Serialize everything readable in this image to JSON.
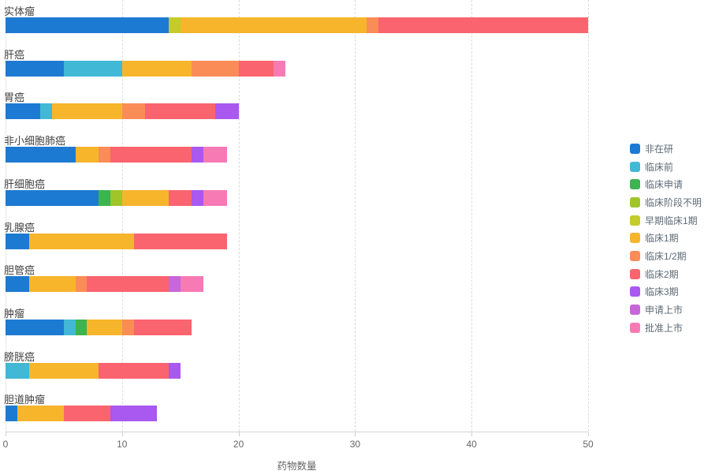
{
  "chart_data": {
    "type": "bar",
    "orientation": "horizontal",
    "stacked": true,
    "title": "",
    "xlabel": "药物数量",
    "ylabel": "",
    "xlim": [
      0,
      50
    ],
    "xticks": [
      0,
      10,
      20,
      30,
      40,
      50
    ],
    "grid": "vertical-dashed",
    "legend_position": "right",
    "series": [
      {
        "name": "非在研",
        "color": "#1d7ad3"
      },
      {
        "name": "临床前",
        "color": "#41b8d5"
      },
      {
        "name": "临床申请",
        "color": "#3cb44f"
      },
      {
        "name": "临床阶段不明",
        "color": "#a0c529"
      },
      {
        "name": "早期临床1期",
        "color": "#c3cc28"
      },
      {
        "name": "临床1期",
        "color": "#f7b52c"
      },
      {
        "name": "临床1/2期",
        "color": "#fa8c57"
      },
      {
        "name": "临床2期",
        "color": "#f9646f"
      },
      {
        "name": "临床3期",
        "color": "#a958f0"
      },
      {
        "name": "申请上市",
        "color": "#c667da"
      },
      {
        "name": "批准上市",
        "color": "#f77ab5"
      }
    ],
    "categories": [
      "实体瘤",
      "肝癌",
      "胃癌",
      "非小细胞肺癌",
      "肝细胞癌",
      "乳腺癌",
      "胆管癌",
      "肿瘤",
      "膀胱癌",
      "胆道肿瘤"
    ],
    "rows": [
      {
        "category": "实体瘤",
        "total": 50,
        "segments": [
          {
            "series": "非在研",
            "value": 14
          },
          {
            "series": "早期临床1期",
            "value": 1
          },
          {
            "series": "临床1期",
            "value": 16
          },
          {
            "series": "临床1/2期",
            "value": 1
          },
          {
            "series": "临床2期",
            "value": 18
          }
        ]
      },
      {
        "category": "肝癌",
        "total": 24,
        "segments": [
          {
            "series": "非在研",
            "value": 5
          },
          {
            "series": "临床前",
            "value": 5
          },
          {
            "series": "临床1期",
            "value": 6
          },
          {
            "series": "临床1/2期",
            "value": 4
          },
          {
            "series": "临床2期",
            "value": 3
          },
          {
            "series": "批准上市",
            "value": 1
          }
        ]
      },
      {
        "category": "胃癌",
        "total": 20,
        "segments": [
          {
            "series": "非在研",
            "value": 3
          },
          {
            "series": "临床前",
            "value": 1
          },
          {
            "series": "临床1期",
            "value": 6
          },
          {
            "series": "临床1/2期",
            "value": 2
          },
          {
            "series": "临床2期",
            "value": 6
          },
          {
            "series": "临床3期",
            "value": 2
          }
        ]
      },
      {
        "category": "非小细胞肺癌",
        "total": 19,
        "segments": [
          {
            "series": "非在研",
            "value": 6
          },
          {
            "series": "临床1期",
            "value": 2
          },
          {
            "series": "临床1/2期",
            "value": 1
          },
          {
            "series": "临床2期",
            "value": 7
          },
          {
            "series": "临床3期",
            "value": 1
          },
          {
            "series": "批准上市",
            "value": 2
          }
        ]
      },
      {
        "category": "肝细胞癌",
        "total": 19,
        "segments": [
          {
            "series": "非在研",
            "value": 8
          },
          {
            "series": "临床申请",
            "value": 1
          },
          {
            "series": "临床阶段不明",
            "value": 1
          },
          {
            "series": "临床1期",
            "value": 4
          },
          {
            "series": "临床2期",
            "value": 2
          },
          {
            "series": "临床3期",
            "value": 1
          },
          {
            "series": "批准上市",
            "value": 2
          }
        ]
      },
      {
        "category": "乳腺癌",
        "total": 19,
        "segments": [
          {
            "series": "非在研",
            "value": 2
          },
          {
            "series": "临床1期",
            "value": 9
          },
          {
            "series": "临床2期",
            "value": 8
          }
        ]
      },
      {
        "category": "胆管癌",
        "total": 17,
        "segments": [
          {
            "series": "非在研",
            "value": 2
          },
          {
            "series": "临床1期",
            "value": 4
          },
          {
            "series": "临床1/2期",
            "value": 1
          },
          {
            "series": "临床2期",
            "value": 7
          },
          {
            "series": "申请上市",
            "value": 1
          },
          {
            "series": "批准上市",
            "value": 2
          }
        ]
      },
      {
        "category": "肿瘤",
        "total": 16,
        "segments": [
          {
            "series": "非在研",
            "value": 5
          },
          {
            "series": "临床前",
            "value": 1
          },
          {
            "series": "临床申请",
            "value": 1
          },
          {
            "series": "临床1期",
            "value": 3
          },
          {
            "series": "临床1/2期",
            "value": 1
          },
          {
            "series": "临床2期",
            "value": 5
          }
        ]
      },
      {
        "category": "膀胱癌",
        "total": 15,
        "segments": [
          {
            "series": "临床前",
            "value": 2
          },
          {
            "series": "临床1期",
            "value": 6
          },
          {
            "series": "临床2期",
            "value": 6
          },
          {
            "series": "临床3期",
            "value": 1
          }
        ]
      },
      {
        "category": "胆道肿瘤",
        "total": 13,
        "segments": [
          {
            "series": "非在研",
            "value": 1
          },
          {
            "series": "临床1期",
            "value": 4
          },
          {
            "series": "临床2期",
            "value": 4
          },
          {
            "series": "临床3期",
            "value": 4
          }
        ]
      }
    ]
  }
}
